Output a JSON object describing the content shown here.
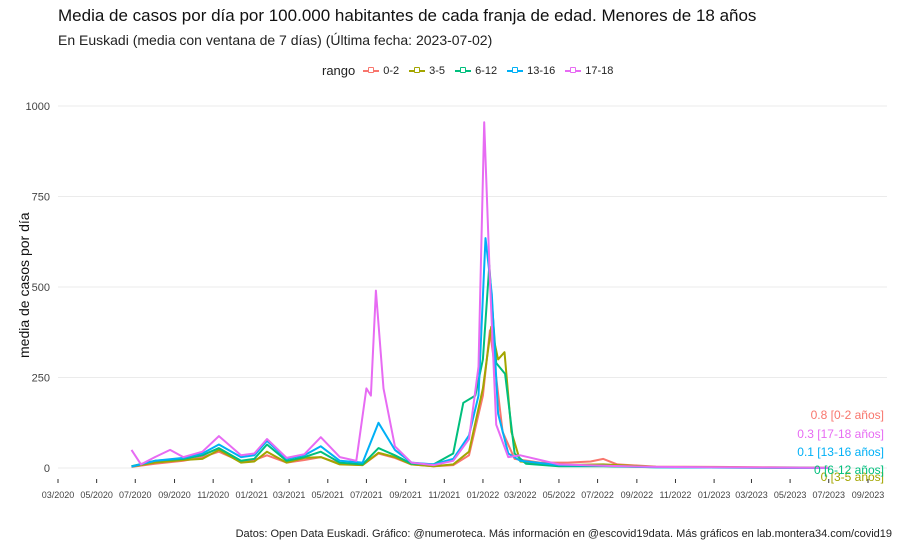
{
  "chart_data": {
    "type": "line",
    "title": "Media de casos por día por 100.000 habitantes de cada franja de edad. Menores de 18 años",
    "subtitle": "En Euskadi (media con ventana de 7 días)  (Última fecha: 2023-07-02)",
    "ylabel": "media de casos por día",
    "caption": "Datos: Open Data Euskadi. Gráfico: @numeroteca. Más información en @escovid19data.  Más gráficos en lab.montera34.com/covid19",
    "legend_title": "rango",
    "legend_position": "top",
    "grid": true,
    "ylim": [
      0,
      1000
    ],
    "yticks": [
      0,
      250,
      500,
      750,
      1000
    ],
    "xlim": [
      "2020-03-01",
      "2023-10-01"
    ],
    "xticks": [
      "03/2020",
      "05/2020",
      "07/2020",
      "09/2020",
      "11/2020",
      "01/2021",
      "03/2021",
      "05/2021",
      "07/2021",
      "09/2021",
      "11/2021",
      "01/2022",
      "03/2022",
      "05/2022",
      "07/2022",
      "09/2022",
      "11/2022",
      "01/2023",
      "03/2023",
      "05/2023",
      "07/2023",
      "09/2023"
    ],
    "series": [
      {
        "name": "0-2",
        "color": "#F8766D",
        "end_label": "0.8 [0-2 años]",
        "points": [
          [
            "2020-06-25",
            3
          ],
          [
            "2020-08-01",
            12
          ],
          [
            "2020-09-15",
            20
          ],
          [
            "2020-10-15",
            30
          ],
          [
            "2020-11-10",
            45
          ],
          [
            "2020-12-15",
            18
          ],
          [
            "2021-01-05",
            22
          ],
          [
            "2021-01-25",
            35
          ],
          [
            "2021-02-25",
            15
          ],
          [
            "2021-03-25",
            22
          ],
          [
            "2021-04-20",
            30
          ],
          [
            "2021-05-20",
            12
          ],
          [
            "2021-06-25",
            8
          ],
          [
            "2021-07-20",
            40
          ],
          [
            "2021-08-15",
            28
          ],
          [
            "2021-09-10",
            10
          ],
          [
            "2021-10-15",
            5
          ],
          [
            "2021-11-15",
            8
          ],
          [
            "2021-12-10",
            35
          ],
          [
            "2022-01-01",
            200
          ],
          [
            "2022-01-12",
            380
          ],
          [
            "2022-01-22",
            250
          ],
          [
            "2022-02-01",
            100
          ],
          [
            "2022-02-20",
            25
          ],
          [
            "2022-04-01",
            15
          ],
          [
            "2022-05-15",
            15
          ],
          [
            "2022-06-20",
            18
          ],
          [
            "2022-07-10",
            25
          ],
          [
            "2022-08-01",
            10
          ],
          [
            "2022-10-01",
            4
          ],
          [
            "2023-01-01",
            3
          ],
          [
            "2023-04-01",
            2
          ],
          [
            "2023-07-02",
            0.8
          ]
        ]
      },
      {
        "name": "3-5",
        "color": "#A3A500",
        "end_label": "0 [3-5 años]",
        "points": [
          [
            "2020-06-25",
            4
          ],
          [
            "2020-08-01",
            15
          ],
          [
            "2020-09-15",
            22
          ],
          [
            "2020-10-15",
            25
          ],
          [
            "2020-11-10",
            50
          ],
          [
            "2020-12-15",
            15
          ],
          [
            "2021-01-05",
            18
          ],
          [
            "2021-01-25",
            45
          ],
          [
            "2021-02-25",
            15
          ],
          [
            "2021-03-25",
            28
          ],
          [
            "2021-04-20",
            30
          ],
          [
            "2021-05-20",
            10
          ],
          [
            "2021-06-25",
            8
          ],
          [
            "2021-07-20",
            42
          ],
          [
            "2021-08-15",
            30
          ],
          [
            "2021-09-10",
            10
          ],
          [
            "2021-10-15",
            5
          ],
          [
            "2021-11-15",
            10
          ],
          [
            "2021-12-10",
            45
          ],
          [
            "2022-01-01",
            220
          ],
          [
            "2022-01-14",
            390
          ],
          [
            "2022-01-25",
            300
          ],
          [
            "2022-02-04",
            320
          ],
          [
            "2022-02-15",
            100
          ],
          [
            "2022-03-01",
            18
          ],
          [
            "2022-05-01",
            8
          ],
          [
            "2022-07-10",
            10
          ],
          [
            "2022-10-01",
            3
          ],
          [
            "2023-01-01",
            2
          ],
          [
            "2023-07-02",
            0
          ]
        ]
      },
      {
        "name": "6-12",
        "color": "#00BF7D",
        "end_label": "0 [6-12 años]",
        "points": [
          [
            "2020-06-25",
            5
          ],
          [
            "2020-08-01",
            20
          ],
          [
            "2020-09-15",
            25
          ],
          [
            "2020-10-15",
            35
          ],
          [
            "2020-11-10",
            55
          ],
          [
            "2020-12-15",
            20
          ],
          [
            "2021-01-05",
            25
          ],
          [
            "2021-01-25",
            65
          ],
          [
            "2021-02-25",
            20
          ],
          [
            "2021-03-25",
            30
          ],
          [
            "2021-04-20",
            45
          ],
          [
            "2021-05-20",
            15
          ],
          [
            "2021-06-25",
            10
          ],
          [
            "2021-07-20",
            55
          ],
          [
            "2021-08-15",
            35
          ],
          [
            "2021-09-10",
            12
          ],
          [
            "2021-10-15",
            10
          ],
          [
            "2021-11-15",
            40
          ],
          [
            "2021-12-01",
            180
          ],
          [
            "2021-12-20",
            200
          ],
          [
            "2022-01-01",
            300
          ],
          [
            "2022-01-11",
            560
          ],
          [
            "2022-01-22",
            290
          ],
          [
            "2022-02-05",
            260
          ],
          [
            "2022-02-20",
            40
          ],
          [
            "2022-03-10",
            12
          ],
          [
            "2022-05-01",
            5
          ],
          [
            "2022-07-10",
            5
          ],
          [
            "2022-10-01",
            2
          ],
          [
            "2023-07-02",
            0
          ]
        ]
      },
      {
        "name": "13-16",
        "color": "#00B0F6",
        "end_label": "0.1 [13-16 años]",
        "points": [
          [
            "2020-06-25",
            4
          ],
          [
            "2020-08-01",
            20
          ],
          [
            "2020-09-15",
            28
          ],
          [
            "2020-10-15",
            40
          ],
          [
            "2020-11-10",
            65
          ],
          [
            "2020-12-15",
            30
          ],
          [
            "2021-01-05",
            35
          ],
          [
            "2021-01-25",
            75
          ],
          [
            "2021-02-25",
            25
          ],
          [
            "2021-03-25",
            35
          ],
          [
            "2021-04-20",
            60
          ],
          [
            "2021-05-20",
            20
          ],
          [
            "2021-06-25",
            15
          ],
          [
            "2021-07-20",
            125
          ],
          [
            "2021-08-15",
            50
          ],
          [
            "2021-09-10",
            15
          ],
          [
            "2021-10-15",
            10
          ],
          [
            "2021-11-15",
            25
          ],
          [
            "2021-12-10",
            90
          ],
          [
            "2021-12-25",
            200
          ],
          [
            "2022-01-05",
            635
          ],
          [
            "2022-01-15",
            480
          ],
          [
            "2022-01-25",
            150
          ],
          [
            "2022-02-10",
            40
          ],
          [
            "2022-03-01",
            20
          ],
          [
            "2022-05-01",
            8
          ],
          [
            "2022-07-10",
            6
          ],
          [
            "2022-10-01",
            2
          ],
          [
            "2023-07-02",
            0.1
          ]
        ]
      },
      {
        "name": "17-18",
        "color": "#E76BF3",
        "end_label": "0.3 [17-18 años]",
        "points": [
          [
            "2020-06-25",
            50
          ],
          [
            "2020-07-10",
            10
          ],
          [
            "2020-08-01",
            30
          ],
          [
            "2020-08-25",
            50
          ],
          [
            "2020-09-15",
            30
          ],
          [
            "2020-10-15",
            45
          ],
          [
            "2020-11-10",
            88
          ],
          [
            "2020-12-15",
            35
          ],
          [
            "2021-01-05",
            40
          ],
          [
            "2021-01-25",
            80
          ],
          [
            "2021-02-25",
            28
          ],
          [
            "2021-03-25",
            38
          ],
          [
            "2021-04-20",
            85
          ],
          [
            "2021-05-20",
            30
          ],
          [
            "2021-06-15",
            20
          ],
          [
            "2021-07-01",
            220
          ],
          [
            "2021-07-08",
            200
          ],
          [
            "2021-07-16",
            490
          ],
          [
            "2021-07-28",
            220
          ],
          [
            "2021-08-15",
            60
          ],
          [
            "2021-09-10",
            15
          ],
          [
            "2021-10-15",
            8
          ],
          [
            "2021-11-15",
            20
          ],
          [
            "2021-12-10",
            80
          ],
          [
            "2021-12-25",
            280
          ],
          [
            "2022-01-03",
            955
          ],
          [
            "2022-01-12",
            520
          ],
          [
            "2022-01-22",
            120
          ],
          [
            "2022-02-10",
            30
          ],
          [
            "2022-03-01",
            35
          ],
          [
            "2022-05-01",
            10
          ],
          [
            "2022-07-10",
            6
          ],
          [
            "2022-10-01",
            3
          ],
          [
            "2023-07-02",
            0.3
          ]
        ]
      }
    ]
  }
}
